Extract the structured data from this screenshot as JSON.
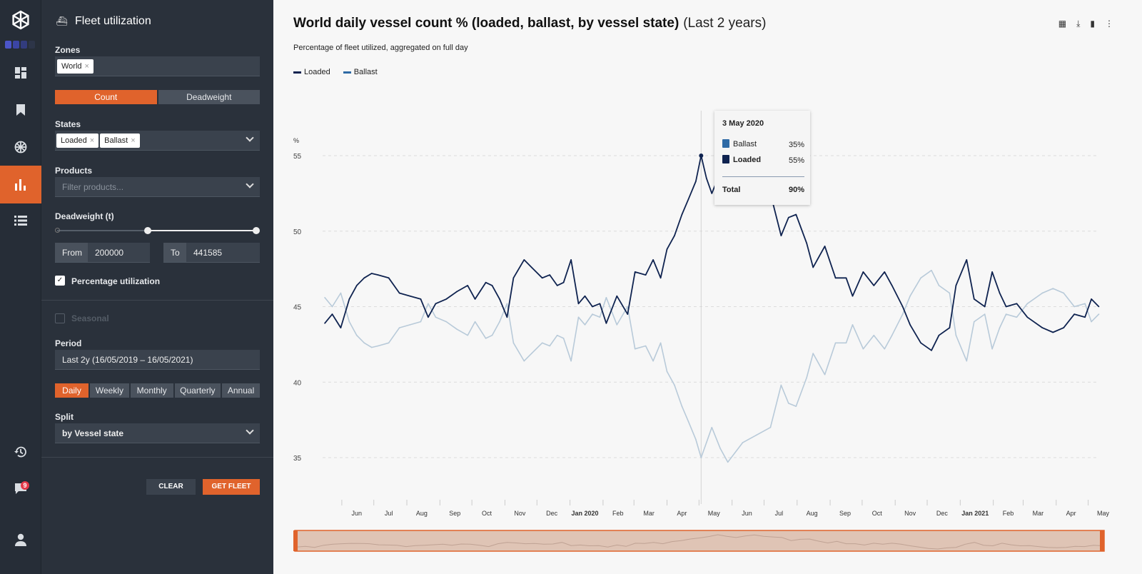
{
  "rail": {
    "icons": [
      "logo-icon",
      "dashboard-icon",
      "bookmark-icon",
      "globe-icon",
      "chart-icon",
      "list-icon",
      "history-icon",
      "chat-icon",
      "user-icon"
    ],
    "notifications": "9",
    "dot_colors": [
      "#4b55c9",
      "#3b45a5",
      "#323c7e",
      "#2d3548"
    ]
  },
  "panel": {
    "title": "Fleet utilization",
    "zones": {
      "label": "Zones",
      "chips": [
        "World"
      ]
    },
    "measure": {
      "options": [
        "Count",
        "Deadweight"
      ],
      "selected": "Count"
    },
    "states": {
      "label": "States",
      "chips": [
        "Loaded",
        "Ballast"
      ]
    },
    "products": {
      "label": "Products",
      "placeholder": "Filter products..."
    },
    "deadweight": {
      "label": "Deadweight (t)",
      "from_label": "From",
      "from": "200000",
      "to_label": "To",
      "to": "441585",
      "slider_from_fraction": 0.45,
      "slider_to_fraction": 1.0
    },
    "percentage": {
      "label": "Percentage utilization",
      "checked": true
    },
    "seasonal": {
      "label": "Seasonal",
      "checked": false
    },
    "period": {
      "label": "Period",
      "value": "Last 2y (16/05/2019 – 16/05/2021)"
    },
    "granularity": {
      "options": [
        "Daily",
        "Weekly",
        "Monthly",
        "Quarterly",
        "Annual"
      ],
      "selected": "Daily"
    },
    "split": {
      "label": "Split",
      "value": "by Vessel state"
    },
    "clear": "CLEAR",
    "get": "GET FLEET"
  },
  "colors": {
    "accent": "#e0632c",
    "loaded": "#0f2350",
    "ballast": "#b8cad9",
    "ballast_legend": "#2e6aa5"
  },
  "header": {
    "title": "World daily vessel count % (loaded, ballast, by vessel state)",
    "subtitle": "(Last 2 years)",
    "description": "Percentage of fleet utilized, aggregated on full day",
    "tools": [
      "grid-add-icon",
      "download-icon",
      "bookmark-icon",
      "more-icon"
    ]
  },
  "tooltip": {
    "date": "3 May 2020",
    "rows": [
      {
        "name": "Ballast",
        "value": "35%",
        "color": "#2e6aa5"
      },
      {
        "name": "Loaded",
        "value": "55%",
        "color": "#0f2350"
      }
    ],
    "total_label": "Total",
    "total": "90%"
  },
  "chart_data": {
    "type": "line",
    "ylabel": "%",
    "ylim": [
      35,
      55
    ],
    "yticks": [
      55,
      50,
      45,
      40,
      35
    ],
    "grid": true,
    "legend": "top-left",
    "xlim": [
      "2019-05-16",
      "2021-05-16"
    ],
    "xticks": [
      "Jun",
      "Jul",
      "Aug",
      "Sep",
      "Oct",
      "Nov",
      "Dec",
      "Jan 2020",
      "Feb",
      "Mar",
      "Apr",
      "May",
      "Jun",
      "Jul",
      "Aug",
      "Sep",
      "Oct",
      "Nov",
      "Dec",
      "Jan 2021",
      "Feb",
      "Mar",
      "Apr",
      "May"
    ],
    "x": [
      "2019-05-16",
      "2019-05-23",
      "2019-05-31",
      "2019-06-08",
      "2019-06-15",
      "2019-06-22",
      "2019-06-29",
      "2019-07-05",
      "2019-07-15",
      "2019-07-25",
      "2019-08-04",
      "2019-08-14",
      "2019-08-21",
      "2019-08-28",
      "2019-09-07",
      "2019-09-17",
      "2019-09-27",
      "2019-10-04",
      "2019-10-14",
      "2019-10-20",
      "2019-10-27",
      "2019-11-03",
      "2019-11-09",
      "2019-11-19",
      "2019-11-26",
      "2019-12-06",
      "2019-12-13",
      "2019-12-20",
      "2019-12-26",
      "2020-01-02",
      "2020-01-09",
      "2020-01-15",
      "2020-01-22",
      "2020-01-29",
      "2020-02-04",
      "2020-02-14",
      "2020-02-24",
      "2020-03-02",
      "2020-03-12",
      "2020-03-19",
      "2020-03-26",
      "2020-04-01",
      "2020-04-08",
      "2020-04-15",
      "2020-04-21",
      "2020-04-28",
      "2020-05-03",
      "2020-05-08",
      "2020-05-13",
      "2020-05-21",
      "2020-05-28",
      "2020-06-11",
      "2020-06-24",
      "2020-07-07",
      "2020-07-17",
      "2020-07-24",
      "2020-07-31",
      "2020-08-10",
      "2020-08-16",
      "2020-08-27",
      "2020-09-06",
      "2020-09-16",
      "2020-09-22",
      "2020-10-02",
      "2020-10-12",
      "2020-10-22",
      "2020-10-29",
      "2020-11-08",
      "2020-11-15",
      "2020-11-25",
      "2020-12-05",
      "2020-12-12",
      "2020-12-22",
      "2020-12-28",
      "2021-01-07",
      "2021-01-14",
      "2021-01-24",
      "2021-01-31",
      "2021-02-07",
      "2021-02-13",
      "2021-02-23",
      "2021-03-05",
      "2021-03-19",
      "2021-03-29",
      "2021-04-08",
      "2021-04-18",
      "2021-04-28",
      "2021-05-04",
      "2021-05-11"
    ],
    "series": [
      {
        "name": "Loaded",
        "values": [
          43.9,
          44.5,
          43.6,
          45.5,
          46.4,
          46.9,
          47.2,
          47.1,
          46.9,
          45.9,
          45.7,
          45.5,
          44.3,
          45.2,
          45.5,
          46.0,
          46.4,
          45.5,
          46.6,
          46.4,
          45.5,
          44.3,
          46.9,
          48.1,
          47.6,
          46.9,
          47.1,
          46.4,
          46.6,
          48.1,
          45.2,
          45.7,
          45.0,
          45.2,
          43.9,
          45.7,
          44.5,
          47.3,
          47.1,
          48.1,
          46.9,
          48.8,
          49.7,
          51.1,
          52.1,
          53.3,
          55.0,
          53.5,
          52.5,
          53.9,
          54.8,
          53.5,
          53.0,
          52.5,
          49.7,
          50.9,
          51.1,
          49.2,
          47.6,
          49.0,
          46.9,
          46.9,
          45.7,
          47.3,
          46.4,
          47.3,
          46.4,
          45.0,
          43.8,
          42.6,
          42.1,
          43.1,
          43.6,
          46.4,
          48.1,
          45.5,
          45.0,
          47.3,
          45.9,
          45.0,
          45.2,
          44.3,
          43.6,
          43.3,
          43.6,
          44.5,
          44.3,
          45.5,
          45.0
        ]
      },
      {
        "name": "Ballast",
        "values": [
          45.6,
          45.0,
          45.9,
          44.0,
          43.1,
          42.6,
          42.3,
          42.4,
          42.6,
          43.6,
          43.8,
          44.0,
          45.2,
          44.3,
          44.0,
          43.5,
          43.1,
          44.0,
          42.9,
          43.1,
          44.0,
          45.2,
          42.6,
          41.4,
          41.9,
          42.6,
          42.4,
          43.1,
          42.9,
          41.4,
          44.3,
          43.8,
          44.5,
          44.3,
          45.6,
          43.8,
          45.0,
          42.2,
          42.4,
          41.4,
          42.6,
          40.7,
          39.8,
          38.4,
          37.4,
          36.2,
          35.0,
          36.0,
          37.0,
          35.6,
          34.7,
          36.0,
          36.5,
          37.0,
          39.8,
          38.6,
          38.4,
          40.3,
          41.9,
          40.5,
          42.6,
          42.6,
          43.8,
          42.2,
          43.1,
          42.2,
          43.1,
          44.5,
          45.7,
          46.9,
          47.4,
          46.4,
          45.9,
          43.1,
          41.4,
          44.0,
          44.5,
          42.2,
          43.6,
          44.5,
          44.3,
          45.2,
          45.9,
          46.2,
          45.9,
          45.0,
          45.2,
          44.0,
          44.5
        ]
      }
    ],
    "cursor": "2020-05-03"
  }
}
